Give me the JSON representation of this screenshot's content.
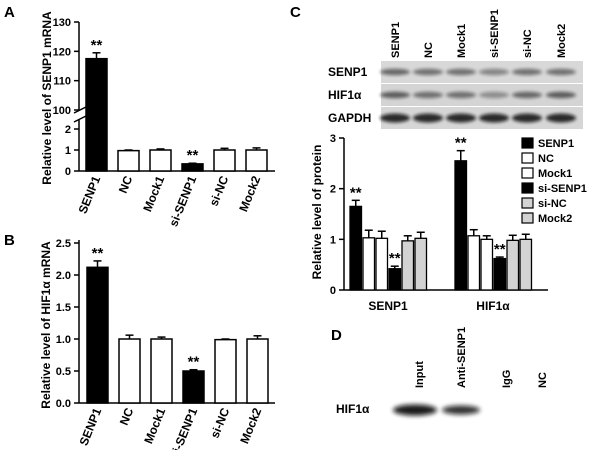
{
  "panels": {
    "a": {
      "letter": "A",
      "chart_data": {
        "type": "bar",
        "ylabel": "Relative level of SENP1 mRNA",
        "categories": [
          "SENP1",
          "NC",
          "Mock1",
          "si-SENP1",
          "si-NC",
          "Mock2"
        ],
        "values": [
          117.5,
          0.97,
          1.0,
          0.34,
          1.0,
          1.0
        ],
        "errors": [
          2.0,
          0.03,
          0.05,
          0.03,
          0.08,
          0.1
        ],
        "fills": [
          "black",
          "white",
          "white",
          "black",
          "white",
          "white"
        ],
        "significance": [
          "**",
          "",
          "",
          "**",
          "",
          ""
        ],
        "axis_break": {
          "lower_range": [
            0,
            2
          ],
          "upper_range": [
            100,
            130
          ]
        },
        "yticks": [
          "0",
          "1",
          "2",
          "100",
          "110",
          "120",
          "130"
        ],
        "grid": false
      }
    },
    "b": {
      "letter": "B",
      "chart_data": {
        "type": "bar",
        "ylabel": "Relative level of HIF1α mRNA",
        "categories": [
          "SENP1",
          "NC",
          "Mock1",
          "si-SENP1",
          "si-NC",
          "Mock2"
        ],
        "values": [
          2.12,
          1.0,
          1.0,
          0.5,
          0.99,
          1.0
        ],
        "errors": [
          0.1,
          0.06,
          0.03,
          0.02,
          0.01,
          0.05
        ],
        "fills": [
          "black",
          "white",
          "white",
          "black",
          "white",
          "white"
        ],
        "significance": [
          "**",
          "",
          "",
          "**",
          "",
          ""
        ],
        "ylim": [
          0,
          2.5
        ],
        "yticks": [
          "0.0",
          "0.5",
          "1.0",
          "1.5",
          "2.0",
          "2.5"
        ],
        "grid": false
      }
    },
    "c": {
      "letter": "C",
      "blot": {
        "lanes": [
          "SENP1",
          "NC",
          "Mock1",
          "si-SENP1",
          "si-NC",
          "Mock2"
        ],
        "rows": [
          "SENP1",
          "HIF1α",
          "GAPDH"
        ]
      },
      "chart_data": {
        "type": "bar",
        "ylabel": "Relative level of protein",
        "categories": [
          "SENP1",
          "HIF1α"
        ],
        "ylim": [
          0,
          3
        ],
        "yticks": [
          "0",
          "1",
          "2",
          "3"
        ],
        "legend_position": "top-right",
        "series": [
          {
            "name": "SENP1",
            "fill": "#000000",
            "values": [
              1.65,
              2.55
            ],
            "errors": [
              0.12,
              0.2
            ],
            "significance": [
              "**",
              "**"
            ]
          },
          {
            "name": "NC",
            "fill": "#ffffff",
            "values": [
              1.03,
              1.07
            ],
            "errors": [
              0.15,
              0.12
            ],
            "significance": [
              "",
              ""
            ]
          },
          {
            "name": "Mock1",
            "fill": "#ffffff",
            "values": [
              1.02,
              1.0
            ],
            "errors": [
              0.14,
              0.07
            ],
            "significance": [
              "",
              ""
            ]
          },
          {
            "name": "si-SENP1",
            "fill": "#000000",
            "values": [
              0.42,
              0.62
            ],
            "errors": [
              0.05,
              0.03
            ],
            "significance": [
              "**",
              "**"
            ]
          },
          {
            "name": "si-NC",
            "fill": "#d3d3d3",
            "values": [
              0.97,
              0.98
            ],
            "errors": [
              0.1,
              0.1
            ],
            "significance": [
              "",
              ""
            ]
          },
          {
            "name": "Mock2",
            "fill": "#d3d3d3",
            "values": [
              1.02,
              1.0
            ],
            "errors": [
              0.12,
              0.1
            ],
            "significance": [
              "",
              ""
            ]
          }
        ]
      }
    },
    "d": {
      "letter": "D",
      "lanes": [
        "Input",
        "Anti-SENP1",
        "IgG",
        "NC"
      ],
      "row_label": "HIF1α"
    }
  }
}
